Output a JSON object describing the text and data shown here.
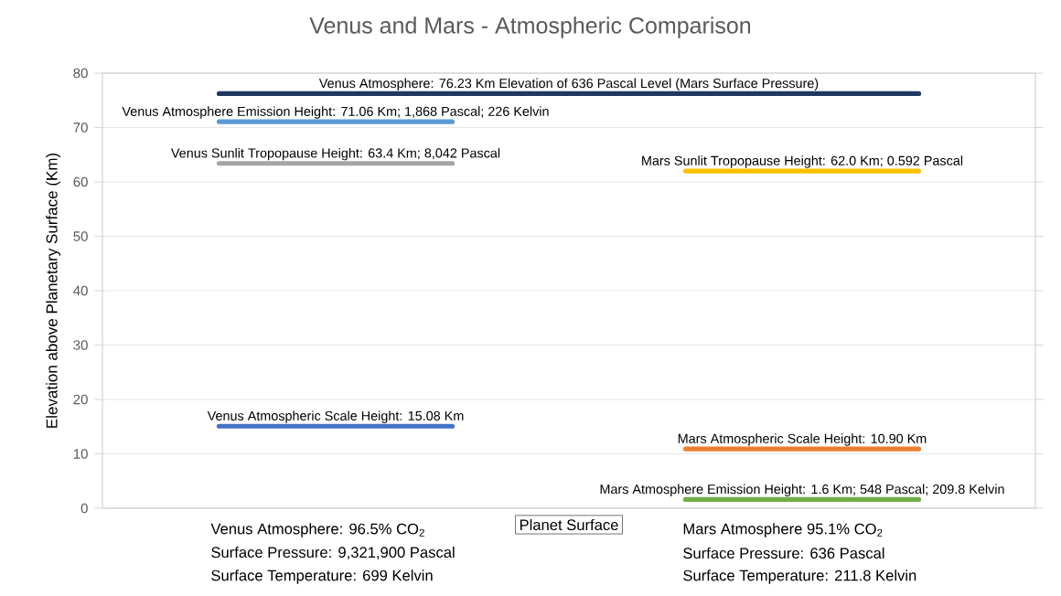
{
  "chart_data": {
    "type": "line",
    "title": "Venus and Mars - Atmospheric Comparison",
    "ylabel": "Elevation above Planetary Surface (Km)",
    "categories": [
      null,
      null,
      null,
      null
    ],
    "series": [
      {
        "name": "Venus Atmosphere: 76.23 Km Elevation of 636 Pascal Level (Mars Surface Pressure)",
        "color": "#1f3864",
        "values": [
          76.23,
          76.23,
          76.23,
          76.23
        ]
      },
      {
        "name": "Venus Atmosphere Emission Height: 71.06 Km; 1,868 Pascal; 226 Kelvin",
        "color": "#5b9bd5",
        "values": [
          71.06,
          71.06,
          null,
          null
        ]
      },
      {
        "name": "Venus Sunlit Tropopause Height: 63.4 Km; 8,042 Pascal",
        "color": "#a5a5a5",
        "values": [
          63.4,
          63.4,
          null,
          null
        ]
      },
      {
        "name": "Mars Sunlit Tropopause Height: 62.0 Km; 0.592 Pascal",
        "color": "#ffc000",
        "values": [
          null,
          null,
          62.0,
          62.0
        ]
      },
      {
        "name": "Venus Atmospheric Scale Height: 15.08 Km",
        "color": "#4472c4",
        "values": [
          15.08,
          15.08,
          null,
          null
        ]
      },
      {
        "name": "Mars Atmospheric Scale Height: 10.90 Km",
        "color": "#ed7d31",
        "values": [
          null,
          null,
          10.9,
          10.9
        ]
      },
      {
        "name": "Mars Atmosphere Emission Height: 1.6 Km; 548 Pascal; 209.8 Kelvin",
        "color": "#70ad47",
        "values": [
          null,
          null,
          1.6,
          1.6
        ]
      }
    ],
    "ylim": [
      0,
      80
    ],
    "yticks": [
      0,
      10,
      20,
      30,
      40,
      50,
      60,
      70,
      80
    ],
    "grid": "y",
    "legend": false,
    "marker": "none",
    "line_style": "solid",
    "annotations": [
      "Venus Atmosphere: 96.5% CO$_{2}$",
      "Surface Pressure: 9,321,900 Pascal",
      "Surface Temperature: 699 Kelvin",
      "Planet Surface",
      "Mars Atmosphere 95.1% CO$_{2}$",
      "Surface Pressure: 636 Pascal",
      "Surface Temperature: 211.8 Kelvin"
    ]
  }
}
